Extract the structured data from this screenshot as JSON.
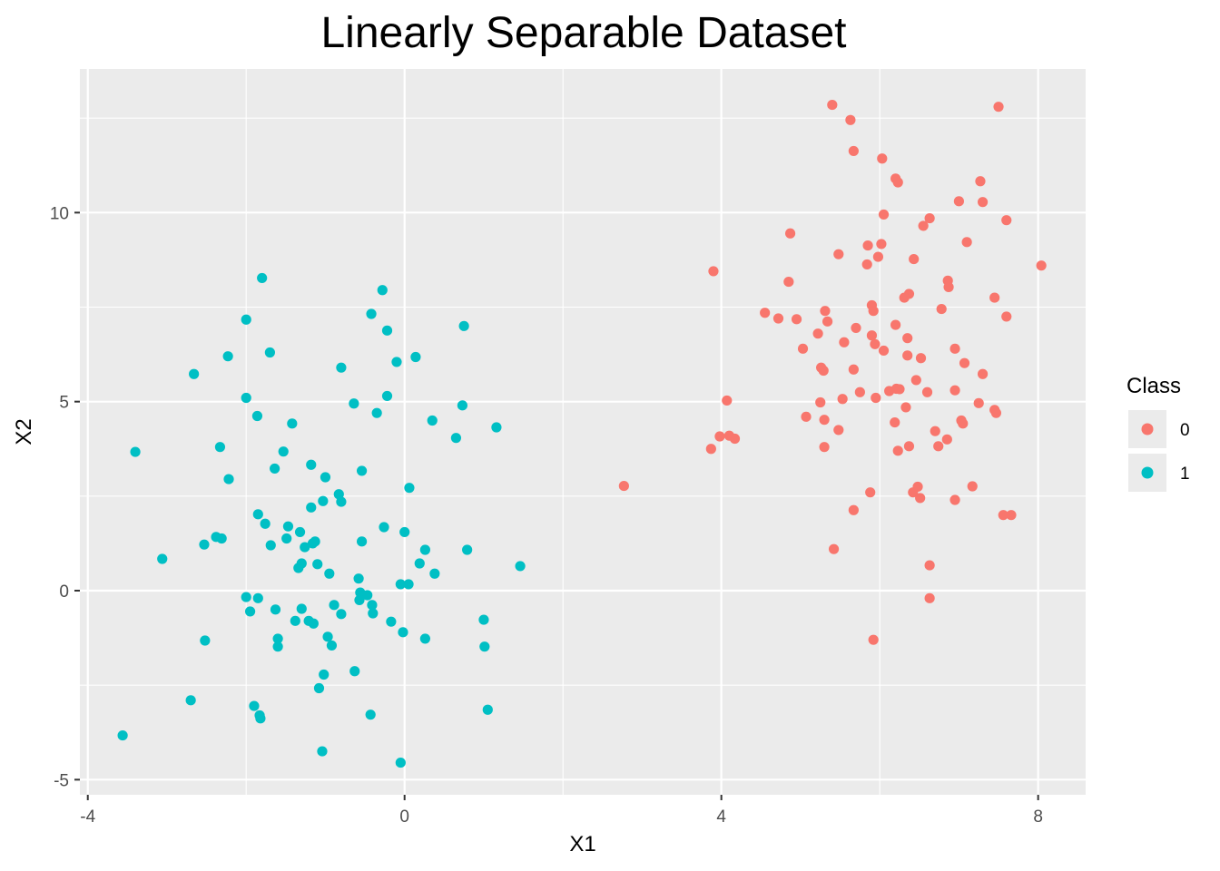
{
  "chart_data": {
    "type": "scatter",
    "title": "Linearly Separable Dataset",
    "xlabel": "X1",
    "ylabel": "X2",
    "xlim": [
      -4.1,
      8.6
    ],
    "ylim": [
      -5.4,
      13.8
    ],
    "x_ticks": [
      -4,
      0,
      4,
      8
    ],
    "y_ticks": [
      -5,
      0,
      5,
      10
    ],
    "x_minor_ticks": [
      -2,
      2,
      6
    ],
    "y_minor_ticks": [
      -2.5,
      2.5,
      7.5,
      12.5
    ],
    "grid": true,
    "legend": {
      "title": "Class",
      "position": "right"
    },
    "colors": {
      "0": "#F8766D",
      "1": "#00BFC4",
      "panel": "#EBEBEB",
      "grid": "#FFFFFF"
    },
    "series": [
      {
        "name": "0",
        "color": "#F8766D",
        "points": [
          [
            5.4,
            12.85
          ],
          [
            7.5,
            12.8
          ],
          [
            5.63,
            12.45
          ],
          [
            5.67,
            11.63
          ],
          [
            6.03,
            11.43
          ],
          [
            6.2,
            10.9
          ],
          [
            6.23,
            10.8
          ],
          [
            7.27,
            10.83
          ],
          [
            7.0,
            10.3
          ],
          [
            7.3,
            10.28
          ],
          [
            6.05,
            9.95
          ],
          [
            6.63,
            9.85
          ],
          [
            7.6,
            9.8
          ],
          [
            6.55,
            9.65
          ],
          [
            4.87,
            9.45
          ],
          [
            7.1,
            9.22
          ],
          [
            6.02,
            9.17
          ],
          [
            5.85,
            9.13
          ],
          [
            5.48,
            8.9
          ],
          [
            5.98,
            8.83
          ],
          [
            5.84,
            8.63
          ],
          [
            6.43,
            8.77
          ],
          [
            8.04,
            8.6
          ],
          [
            3.9,
            8.45
          ],
          [
            4.85,
            8.17
          ],
          [
            6.86,
            8.2
          ],
          [
            6.87,
            8.03
          ],
          [
            6.37,
            7.85
          ],
          [
            6.31,
            7.75
          ],
          [
            7.45,
            7.75
          ],
          [
            5.9,
            7.55
          ],
          [
            5.92,
            7.4
          ],
          [
            6.78,
            7.45
          ],
          [
            4.55,
            7.35
          ],
          [
            5.31,
            7.4
          ],
          [
            4.72,
            7.2
          ],
          [
            4.95,
            7.18
          ],
          [
            5.34,
            7.12
          ],
          [
            7.6,
            7.25
          ],
          [
            6.2,
            7.03
          ],
          [
            5.7,
            6.95
          ],
          [
            5.22,
            6.8
          ],
          [
            5.9,
            6.75
          ],
          [
            6.35,
            6.68
          ],
          [
            5.55,
            6.57
          ],
          [
            5.94,
            6.52
          ],
          [
            6.05,
            6.35
          ],
          [
            5.03,
            6.4
          ],
          [
            6.95,
            6.4
          ],
          [
            6.35,
            6.22
          ],
          [
            6.52,
            6.15
          ],
          [
            7.07,
            6.02
          ],
          [
            5.26,
            5.9
          ],
          [
            5.29,
            5.82
          ],
          [
            5.67,
            5.85
          ],
          [
            7.3,
            5.73
          ],
          [
            6.46,
            5.57
          ],
          [
            6.25,
            5.33
          ],
          [
            6.12,
            5.28
          ],
          [
            6.6,
            5.25
          ],
          [
            5.75,
            5.25
          ],
          [
            6.95,
            5.3
          ],
          [
            6.21,
            5.34
          ],
          [
            5.95,
            5.1
          ],
          [
            5.53,
            5.07
          ],
          [
            5.25,
            4.98
          ],
          [
            7.25,
            4.96
          ],
          [
            6.33,
            4.85
          ],
          [
            7.45,
            4.78
          ],
          [
            7.47,
            4.7
          ],
          [
            5.07,
            4.6
          ],
          [
            5.3,
            4.52
          ],
          [
            7.03,
            4.5
          ],
          [
            7.05,
            4.42
          ],
          [
            6.19,
            4.45
          ],
          [
            5.48,
            4.25
          ],
          [
            6.7,
            4.22
          ],
          [
            4.1,
            4.1
          ],
          [
            3.98,
            4.08
          ],
          [
            4.17,
            4.02
          ],
          [
            6.85,
            4.0
          ],
          [
            4.07,
            5.03
          ],
          [
            3.87,
            3.75
          ],
          [
            5.3,
            3.8
          ],
          [
            6.74,
            3.82
          ],
          [
            6.37,
            3.82
          ],
          [
            6.23,
            3.7
          ],
          [
            2.77,
            2.77
          ],
          [
            6.48,
            2.75
          ],
          [
            7.17,
            2.76
          ],
          [
            6.42,
            2.6
          ],
          [
            5.88,
            2.6
          ],
          [
            6.51,
            2.45
          ],
          [
            6.95,
            2.4
          ],
          [
            5.67,
            2.13
          ],
          [
            7.56,
            2.0
          ],
          [
            7.66,
            2.0
          ],
          [
            5.42,
            1.1
          ],
          [
            6.63,
            0.67
          ],
          [
            6.63,
            -0.2
          ],
          [
            5.92,
            -1.3
          ]
        ]
      },
      {
        "name": "1",
        "color": "#00BFC4",
        "points": [
          [
            -1.8,
            8.27
          ],
          [
            -0.28,
            7.95
          ],
          [
            -2.0,
            7.17
          ],
          [
            -0.42,
            7.32
          ],
          [
            0.75,
            7.0
          ],
          [
            -0.22,
            6.88
          ],
          [
            -1.7,
            6.3
          ],
          [
            -2.23,
            6.2
          ],
          [
            0.14,
            6.18
          ],
          [
            -0.1,
            6.05
          ],
          [
            -0.8,
            5.9
          ],
          [
            -2.66,
            5.73
          ],
          [
            -2.0,
            5.1
          ],
          [
            -0.22,
            5.15
          ],
          [
            -0.64,
            4.95
          ],
          [
            0.73,
            4.9
          ],
          [
            -0.35,
            4.7
          ],
          [
            -1.86,
            4.62
          ],
          [
            0.35,
            4.5
          ],
          [
            -1.42,
            4.42
          ],
          [
            1.16,
            4.32
          ],
          [
            0.65,
            4.04
          ],
          [
            -2.33,
            3.8
          ],
          [
            -3.4,
            3.67
          ],
          [
            -1.53,
            3.68
          ],
          [
            -1.18,
            3.33
          ],
          [
            -1.64,
            3.23
          ],
          [
            -0.54,
            3.17
          ],
          [
            -1.0,
            3.0
          ],
          [
            -2.22,
            2.95
          ],
          [
            0.06,
            2.72
          ],
          [
            -0.83,
            2.55
          ],
          [
            -1.03,
            2.37
          ],
          [
            -0.8,
            2.35
          ],
          [
            -1.18,
            2.2
          ],
          [
            -1.85,
            2.02
          ],
          [
            -1.76,
            1.77
          ],
          [
            -1.47,
            1.7
          ],
          [
            -0.26,
            1.68
          ],
          [
            -1.32,
            1.55
          ],
          [
            0.0,
            1.55
          ],
          [
            -2.38,
            1.42
          ],
          [
            -2.31,
            1.38
          ],
          [
            -1.49,
            1.38
          ],
          [
            -0.54,
            1.3
          ],
          [
            -2.53,
            1.22
          ],
          [
            -1.16,
            1.25
          ],
          [
            -1.13,
            1.3
          ],
          [
            -1.26,
            1.15
          ],
          [
            -1.69,
            1.2
          ],
          [
            0.26,
            1.08
          ],
          [
            0.79,
            1.08
          ],
          [
            -3.06,
            0.84
          ],
          [
            -1.3,
            0.72
          ],
          [
            -1.1,
            0.7
          ],
          [
            0.19,
            0.72
          ],
          [
            -1.34,
            0.6
          ],
          [
            1.46,
            0.65
          ],
          [
            -0.95,
            0.45
          ],
          [
            0.38,
            0.45
          ],
          [
            -0.58,
            0.32
          ],
          [
            -0.05,
            0.17
          ],
          [
            0.05,
            0.17
          ],
          [
            -0.56,
            -0.05
          ],
          [
            -0.47,
            -0.12
          ],
          [
            -2.0,
            -0.17
          ],
          [
            -1.85,
            -0.2
          ],
          [
            -0.57,
            -0.25
          ],
          [
            -0.41,
            -0.38
          ],
          [
            -0.89,
            -0.38
          ],
          [
            -1.3,
            -0.48
          ],
          [
            -1.63,
            -0.5
          ],
          [
            -1.95,
            -0.55
          ],
          [
            -0.8,
            -0.62
          ],
          [
            -0.4,
            -0.6
          ],
          [
            -1.21,
            -0.8
          ],
          [
            -1.38,
            -0.8
          ],
          [
            -0.17,
            -0.82
          ],
          [
            1.0,
            -0.77
          ],
          [
            -1.15,
            -0.87
          ],
          [
            -0.02,
            -1.1
          ],
          [
            -0.97,
            -1.22
          ],
          [
            -1.6,
            -1.27
          ],
          [
            0.26,
            -1.27
          ],
          [
            -2.52,
            -1.32
          ],
          [
            -0.92,
            -1.45
          ],
          [
            -1.6,
            -1.48
          ],
          [
            1.01,
            -1.48
          ],
          [
            -0.63,
            -2.13
          ],
          [
            -1.02,
            -2.22
          ],
          [
            -1.08,
            -2.58
          ],
          [
            -2.7,
            -2.9
          ],
          [
            -1.9,
            -3.05
          ],
          [
            1.05,
            -3.15
          ],
          [
            -1.83,
            -3.3
          ],
          [
            -1.82,
            -3.38
          ],
          [
            -0.43,
            -3.28
          ],
          [
            -3.56,
            -3.83
          ],
          [
            -1.04,
            -4.25
          ],
          [
            -0.05,
            -4.55
          ]
        ]
      }
    ]
  }
}
